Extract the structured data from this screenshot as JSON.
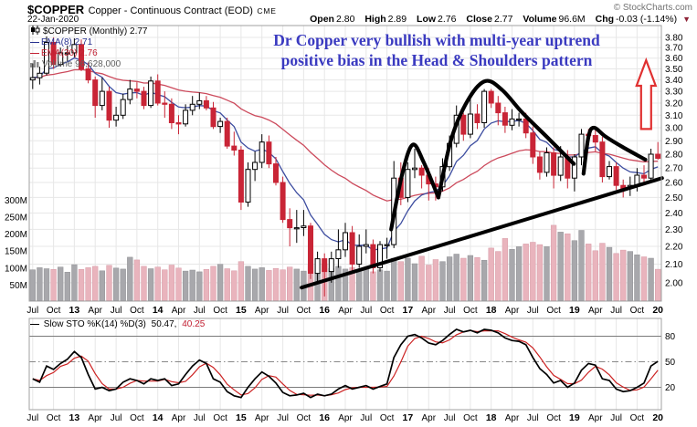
{
  "header": {
    "symbol": "$COPPER",
    "description": "Copper - Continuous Contract (EOD)",
    "exchange": "CME",
    "date": "22-Jan-2020",
    "copyright": "© StockCharts.com"
  },
  "quote": {
    "open_label": "Open",
    "open": "2.80",
    "high_label": "High",
    "high": "2.89",
    "low_label": "Low",
    "low": "2.76",
    "close_label": "Close",
    "close": "2.77",
    "volume_label": "Volume",
    "volume": "96.6M",
    "chg_label": "Chg",
    "chg": "-0.03 (-1.14%)",
    "down_icon": "▼"
  },
  "legend": {
    "swatch": "—",
    "symbol_line": "$COPPER (Monthly) 2.77",
    "ema8_line": "EMA(8) 2.71",
    "ema30_line": "EMA(30) 2.76",
    "volume_line": "Volume 96,628,000"
  },
  "annotation": {
    "line1": "Dr Copper very bullish with multi-year uptrend",
    "line2": "positive bias in the Head & Shoulders pattern"
  },
  "sto_legend": {
    "swatch": "—",
    "label": "Slow STO %K(14) %D(3)",
    "k_value": "50.47,",
    "d_value": "40.25"
  },
  "colors": {
    "candle_down": "#c92536",
    "candle_up_fill": "#ffffff",
    "candle_up_stroke": "#000000",
    "volume_down": "#e9b4bd",
    "volume_up": "#a8a8ac",
    "ema8": "#3d4da0",
    "ema30": "#cc4a5c",
    "grid": "#e7e7e7",
    "panel_border": "#a0a0a0",
    "annotation_ink": "#000000",
    "arrow_red": "#e03030",
    "sto_k": "#000000",
    "sto_d": "#cc2222",
    "annotation_text": "#3a3ac0"
  },
  "chart_data": {
    "type": "candlestick",
    "title": "$COPPER Copper - Continuous Contract (EOD) CME, Monthly",
    "timeframe": "monthly",
    "start_month": "Jul 2012",
    "end_month": "Jan 2020",
    "price_axis": {
      "scale": "log",
      "min": 2.0,
      "max": 3.8,
      "step": 0.1
    },
    "price_ticks": [
      "3.80",
      "3.70",
      "3.60",
      "3.50",
      "3.40",
      "3.30",
      "3.20",
      "3.10",
      "3.00",
      "2.90",
      "2.80",
      "2.70",
      "2.60",
      "2.50",
      "2.40",
      "2.30",
      "2.20",
      "2.10",
      "2.00"
    ],
    "volume_ticks": [
      "300M",
      "250M",
      "200M",
      "150M",
      "100M",
      "50M"
    ],
    "sto_ticks": [
      "80",
      "50",
      "20"
    ],
    "x_ticks": [
      "Jul",
      "Oct",
      "13",
      "Apr",
      "Jul",
      "Oct",
      "14",
      "Apr",
      "Jul",
      "Oct",
      "15",
      "Apr",
      "Jul",
      "Oct",
      "16",
      "Apr",
      "Jul",
      "Oct",
      "17",
      "Apr",
      "Jul",
      "Oct",
      "18",
      "Apr",
      "Jul",
      "Oct",
      "19",
      "Apr",
      "Jul",
      "Oct",
      "20"
    ],
    "candles": {
      "first_open": 3.4,
      "closes": [
        3.42,
        3.46,
        3.75,
        3.54,
        3.65,
        3.65,
        3.73,
        3.5,
        3.4,
        3.18,
        3.3,
        3.06,
        3.1,
        3.23,
        3.32,
        3.3,
        3.18,
        3.39,
        3.2,
        3.19,
        3.04,
        3.03,
        3.14,
        3.19,
        3.22,
        3.16,
        3.01,
        3.05,
        2.86,
        2.83,
        2.47,
        2.69,
        2.74,
        2.89,
        2.73,
        2.6,
        2.36,
        2.31,
        2.31,
        2.32,
        2.05,
        2.13,
        2.06,
        2.13,
        2.18,
        2.28,
        2.1,
        2.2,
        2.21,
        2.08,
        2.21,
        2.21,
        2.63,
        2.5,
        2.69,
        2.7,
        2.65,
        2.59,
        2.57,
        2.71,
        2.88,
        3.1,
        2.95,
        3.11,
        3.04,
        3.3,
        3.2,
        3.12,
        3.02,
        3.07,
        3.07,
        2.96,
        2.78,
        2.67,
        2.81,
        2.65,
        2.78,
        2.63,
        2.78,
        2.95,
        2.94,
        2.89,
        2.64,
        2.71,
        2.58,
        2.56,
        2.58,
        2.65,
        2.63,
        2.8,
        2.77
      ],
      "highs": [
        3.55,
        3.52,
        3.81,
        3.8,
        3.7,
        3.72,
        3.79,
        3.78,
        3.56,
        3.43,
        3.42,
        3.34,
        3.17,
        3.28,
        3.4,
        3.38,
        3.34,
        3.43,
        3.45,
        3.3,
        3.24,
        3.1,
        3.19,
        3.26,
        3.29,
        3.26,
        3.21,
        3.08,
        3.08,
        2.97,
        2.86,
        2.74,
        2.82,
        2.95,
        2.94,
        2.78,
        2.64,
        2.43,
        2.42,
        2.42,
        2.34,
        2.17,
        2.16,
        2.17,
        2.3,
        2.34,
        2.32,
        2.27,
        2.3,
        2.24,
        2.23,
        2.25,
        2.75,
        2.74,
        2.74,
        2.84,
        2.72,
        2.7,
        2.64,
        2.77,
        2.94,
        3.18,
        3.12,
        3.27,
        3.19,
        3.32,
        3.32,
        3.26,
        3.17,
        3.15,
        3.12,
        3.12,
        3.01,
        2.82,
        2.85,
        2.85,
        2.86,
        2.83,
        2.8,
        2.99,
        2.99,
        2.98,
        2.93,
        2.75,
        2.74,
        2.62,
        2.64,
        2.7,
        2.72,
        2.84,
        2.89
      ],
      "lows": [
        3.32,
        3.36,
        3.44,
        3.5,
        3.52,
        3.57,
        3.61,
        3.48,
        3.37,
        3.08,
        3.14,
        3.0,
        3.01,
        3.07,
        3.19,
        3.24,
        3.15,
        3.16,
        3.18,
        3.08,
        2.99,
        2.95,
        3.01,
        3.1,
        3.15,
        3.14,
        2.99,
        2.96,
        2.84,
        2.79,
        2.42,
        2.44,
        2.61,
        2.7,
        2.7,
        2.58,
        2.34,
        2.2,
        2.22,
        2.26,
        2.02,
        2.0,
        1.93,
        2.0,
        2.08,
        2.14,
        2.05,
        2.08,
        2.16,
        2.05,
        2.06,
        2.13,
        2.19,
        2.45,
        2.47,
        2.63,
        2.56,
        2.48,
        2.48,
        2.54,
        2.68,
        2.85,
        2.9,
        2.92,
        2.99,
        3.0,
        3.16,
        3.02,
        2.96,
        2.98,
        3.01,
        2.92,
        2.73,
        2.62,
        2.64,
        2.56,
        2.61,
        2.56,
        2.54,
        2.72,
        2.87,
        2.82,
        2.6,
        2.62,
        2.55,
        2.5,
        2.51,
        2.54,
        2.58,
        2.6,
        2.76
      ]
    },
    "volumes_M": [
      95,
      101,
      98,
      96,
      103,
      88,
      110,
      96,
      101,
      105,
      92,
      108,
      100,
      97,
      132,
      124,
      105,
      98,
      103,
      95,
      109,
      100,
      91,
      94,
      89,
      96,
      105,
      111,
      98,
      92,
      119,
      105,
      97,
      101,
      93,
      99,
      95,
      103,
      97,
      91,
      109,
      87,
      113,
      99,
      105,
      97,
      101,
      93,
      97,
      89,
      95,
      91,
      129,
      119,
      129,
      113,
      135,
      109,
      125,
      119,
      133,
      141,
      129,
      137,
      131,
      123,
      159,
      149,
      187,
      155,
      163,
      171,
      176,
      169,
      163,
      226,
      206,
      201,
      181,
      211,
      171,
      151,
      173,
      161,
      143,
      153,
      149,
      139,
      133,
      129,
      96.6
    ],
    "overlays": {
      "ema_periods": [
        8,
        30
      ]
    },
    "stochastic": {
      "k_period": 14,
      "d_period": 3,
      "k_values": [
        30,
        26,
        45,
        41,
        48,
        53,
        62,
        55,
        35,
        18,
        20,
        16,
        18,
        26,
        30,
        28,
        24,
        30,
        28,
        30,
        22,
        24,
        35,
        45,
        52,
        48,
        30,
        26,
        15,
        10,
        8,
        20,
        30,
        38,
        33,
        25,
        14,
        10,
        11,
        13,
        8,
        12,
        10,
        12,
        18,
        22,
        18,
        20,
        22,
        18,
        21,
        24,
        55,
        70,
        80,
        82,
        78,
        72,
        70,
        75,
        82,
        88,
        85,
        87,
        84,
        88,
        87,
        84,
        78,
        75,
        74,
        70,
        55,
        42,
        35,
        25,
        28,
        20,
        25,
        40,
        48,
        46,
        30,
        28,
        18,
        15,
        16,
        20,
        25,
        45,
        50.47
      ],
      "overbought": 80,
      "mid": 50,
      "oversold": 20
    },
    "drawn_annotations": {
      "left_shoulder": [
        [
          51.6,
          2.3
        ],
        [
          53.2,
          2.66
        ],
        [
          54.7,
          2.87
        ],
        [
          56.3,
          2.74
        ],
        [
          58.4,
          2.5
        ]
      ],
      "head": [
        [
          58.4,
          2.5
        ],
        [
          60.3,
          2.92
        ],
        [
          62.8,
          3.24
        ],
        [
          65.2,
          3.39
        ],
        [
          67.6,
          3.31
        ],
        [
          70.5,
          3.12
        ],
        [
          74.0,
          2.93
        ],
        [
          77.9,
          2.73
        ]
      ],
      "right_shoulder": [
        [
          79.3,
          2.66
        ],
        [
          80.0,
          2.93
        ],
        [
          80.8,
          3.0
        ],
        [
          82.5,
          2.93
        ],
        [
          85.0,
          2.85
        ],
        [
          88.2,
          2.76
        ]
      ],
      "trendline": [
        [
          38.7,
          1.975
        ],
        [
          90.6,
          2.63
        ]
      ],
      "up_arrow": {
        "index": 88.3,
        "price_base": 2.99,
        "price_tip": 3.58
      }
    }
  }
}
